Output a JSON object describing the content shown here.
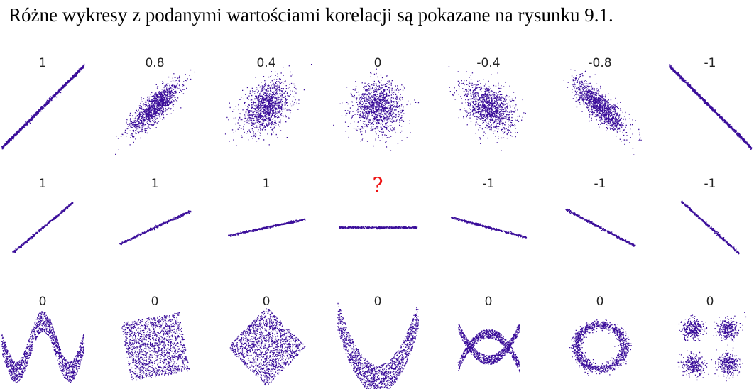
{
  "caption": "Różne wykresy z podanymi wartościami korelacji są pokazane na rysunku 9.1.",
  "colors": {
    "points": "#3a0d9a",
    "label": "#222222",
    "question": "#ee1111"
  },
  "chart_data": {
    "type": "scatter",
    "rows": [
      {
        "name": "linear-noise",
        "panels": [
          {
            "label": "1",
            "kind": "corr",
            "r": 1
          },
          {
            "label": "0.8",
            "kind": "corr",
            "r": 0.8
          },
          {
            "label": "0.4",
            "kind": "corr",
            "r": 0.4
          },
          {
            "label": "0",
            "kind": "corr",
            "r": 0
          },
          {
            "label": "-0.4",
            "kind": "corr",
            "r": -0.4
          },
          {
            "label": "-0.8",
            "kind": "corr",
            "r": -0.8
          },
          {
            "label": "-1",
            "kind": "corr",
            "r": -1
          }
        ]
      },
      {
        "name": "slopes",
        "panels": [
          {
            "label": "1",
            "kind": "slope",
            "angle": 40
          },
          {
            "label": "1",
            "kind": "slope",
            "angle": 25
          },
          {
            "label": "1",
            "kind": "slope",
            "angle": 12
          },
          {
            "label": "?",
            "kind": "slope",
            "angle": 0
          },
          {
            "label": "-1",
            "kind": "slope",
            "angle": -15
          },
          {
            "label": "-1",
            "kind": "slope",
            "angle": -28
          },
          {
            "label": "-1",
            "kind": "slope",
            "angle": -42
          }
        ]
      },
      {
        "name": "nonlinear",
        "panels": [
          {
            "label": "0",
            "kind": "wave"
          },
          {
            "label": "0",
            "kind": "rotsquare"
          },
          {
            "label": "0",
            "kind": "diamond"
          },
          {
            "label": "0",
            "kind": "parabola"
          },
          {
            "label": "0",
            "kind": "cross"
          },
          {
            "label": "0",
            "kind": "ring"
          },
          {
            "label": "0",
            "kind": "clusters"
          }
        ]
      }
    ]
  }
}
